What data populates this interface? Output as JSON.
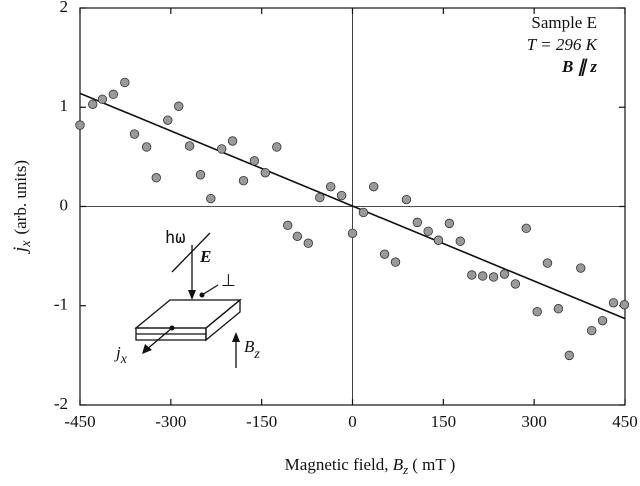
{
  "chart_data": {
    "type": "scatter",
    "x_label": {
      "text": "Magnetic field,",
      "symbol": "B",
      "subscript": "z",
      "unit": "( mT )"
    },
    "y_label": {
      "symbol": "j",
      "subscript": "x",
      "text": "(arb. units)"
    },
    "annotations": [
      "Sample E",
      "T = 296 K",
      "B ∥ z"
    ],
    "x": [
      -450,
      -429,
      -413,
      -395,
      -376,
      -360,
      -340,
      -324,
      -305,
      -287,
      -269,
      -251,
      -234,
      -216,
      -198,
      -180,
      -162,
      -144,
      -125,
      -107,
      -91,
      -73,
      -54,
      -36,
      -18,
      0,
      18,
      35,
      53,
      71,
      89,
      107,
      125,
      142,
      160,
      178,
      197,
      215,
      233,
      251,
      269,
      287,
      305,
      322,
      340,
      358,
      377,
      395,
      413,
      431,
      449
    ],
    "values": [
      0.82,
      1.03,
      1.08,
      1.13,
      1.25,
      0.73,
      0.6,
      0.29,
      0.87,
      1.01,
      0.61,
      0.32,
      0.08,
      0.58,
      0.66,
      0.26,
      0.46,
      0.34,
      0.6,
      -0.19,
      -0.3,
      -0.37,
      0.09,
      0.2,
      0.11,
      -0.27,
      -0.06,
      0.2,
      -0.48,
      -0.56,
      0.07,
      -0.16,
      -0.25,
      -0.34,
      -0.17,
      -0.35,
      -0.69,
      -0.7,
      -0.71,
      -0.68,
      -0.78,
      -0.22,
      -1.06,
      -0.57,
      -1.03,
      -1.5,
      -0.62,
      -1.25,
      -1.15,
      -0.97,
      -0.99
    ],
    "color": "#9a9a9a",
    "fit": {
      "x": [
        -450,
        450
      ],
      "values": [
        1.14,
        -1.13
      ],
      "color": "#111111"
    },
    "xlim": [
      -450,
      450
    ],
    "xticks": [
      -450,
      -300,
      -150,
      0,
      150,
      300,
      450
    ],
    "ylim": [
      -2,
      2
    ],
    "yticks": [
      -2,
      -1,
      0,
      1,
      2
    ],
    "zero_lines": true
  },
  "inset": {
    "h_omega": "hω",
    "field": "E",
    "perp": "⊥",
    "current": "j",
    "current_sub": "x",
    "magnet": "B",
    "magnet_sub": "z"
  }
}
